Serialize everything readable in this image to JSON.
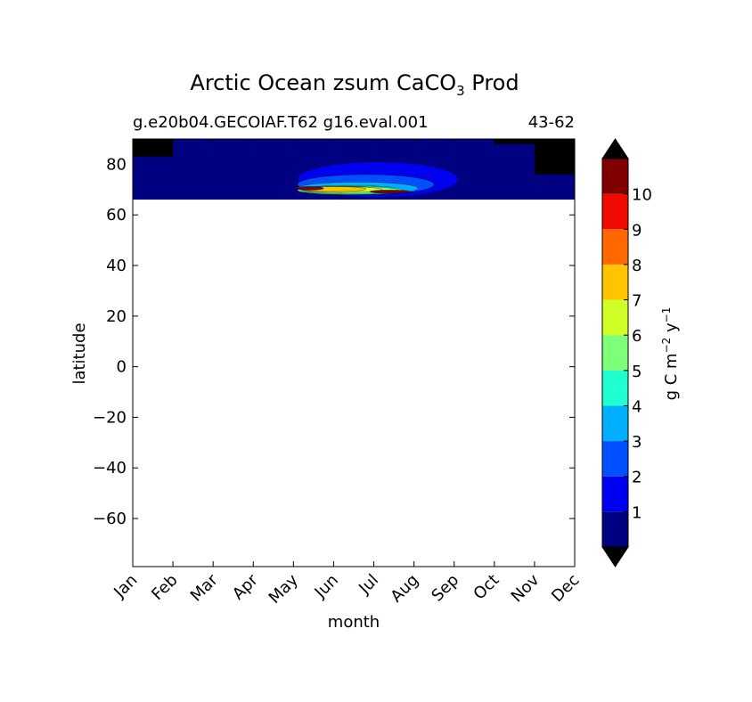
{
  "chart_data": {
    "type": "heatmap",
    "title_main": "Arctic Ocean zsum CaCO",
    "title_sub": "3",
    "title_tail": " Prod",
    "subtitle_left": "g.e20b04.GECOIAF.T62 g16.eval.001",
    "subtitle_right": "43-62",
    "xlabel": "month",
    "ylabel": "latitude",
    "x_ticks": [
      "Jan",
      "Feb",
      "Mar",
      "Apr",
      "May",
      "Jun",
      "Jul",
      "Aug",
      "Sep",
      "Oct",
      "Nov",
      "Dec"
    ],
    "y_ticks": [
      "80",
      "60",
      "40",
      "20",
      "0",
      "−20",
      "−40",
      "−60"
    ],
    "y_tick_values": [
      80,
      60,
      40,
      20,
      0,
      -20,
      -40,
      -60
    ],
    "xlim": [
      0,
      11
    ],
    "ylim": [
      -79,
      90
    ],
    "data_lat_range": [
      66,
      90
    ],
    "colorbar": {
      "label_main": "g C m",
      "label_exp1": "−2",
      "label_mid": " y",
      "label_exp2": "−1",
      "levels": [
        0,
        1,
        2,
        3,
        4,
        5,
        6,
        7,
        8,
        9,
        10,
        11
      ],
      "tick_labels": [
        "1",
        "2",
        "3",
        "4",
        "5",
        "6",
        "7",
        "8",
        "9",
        "10"
      ],
      "colors": [
        "#000080",
        "#0000f0",
        "#0050ff",
        "#00b0ff",
        "#20ffd0",
        "#7dff7a",
        "#d0ff28",
        "#ffc400",
        "#ff6800",
        "#f00a00",
        "#800000"
      ],
      "under_color": "#000000",
      "over_color": "#000000"
    },
    "features": [
      {
        "name": "background",
        "level": 0
      },
      {
        "name": "ice-jan-feb",
        "level": -1,
        "lat": [
          83,
          90
        ],
        "month": [
          0,
          1
        ]
      },
      {
        "name": "ice-oct-nov",
        "level": -1,
        "lat": [
          88,
          90
        ],
        "month": [
          9,
          10
        ]
      },
      {
        "name": "ice-nov-dec",
        "level": -1,
        "lat": [
          76,
          90
        ],
        "month": [
          10,
          11
        ]
      },
      {
        "name": "bloom-1",
        "level": 1,
        "center": [
          6.1,
          74
        ],
        "spread": [
          2.0,
          7
        ]
      },
      {
        "name": "bloom-2",
        "level": 2,
        "center": [
          5.8,
          72
        ],
        "spread": [
          1.7,
          4
        ]
      },
      {
        "name": "bloom-3",
        "level": 3,
        "center": [
          5.6,
          70.5
        ],
        "spread": [
          1.5,
          2.5
        ]
      },
      {
        "name": "bloom-4",
        "level": 4,
        "center": [
          5.4,
          69.8
        ],
        "spread": [
          1.3,
          1.8
        ]
      },
      {
        "name": "bloom-5",
        "level": 5,
        "center": [
          5.4,
          69.8
        ],
        "spread": [
          1.2,
          1.5
        ]
      },
      {
        "name": "bloom-6",
        "level": 6,
        "center": [
          5.2,
          70
        ],
        "spread": [
          1.0,
          1.2
        ]
      },
      {
        "name": "bloom-7",
        "level": 7,
        "center": [
          5.0,
          70.2
        ],
        "spread": [
          0.8,
          1.0
        ]
      },
      {
        "name": "peak-may",
        "level": 10,
        "center": [
          4.4,
          70.5
        ],
        "spread": [
          0.35,
          0.7
        ]
      },
      {
        "name": "peak-jul",
        "level": 10,
        "center": [
          6.4,
          69.2
        ],
        "spread": [
          0.5,
          0.6
        ]
      }
    ]
  }
}
